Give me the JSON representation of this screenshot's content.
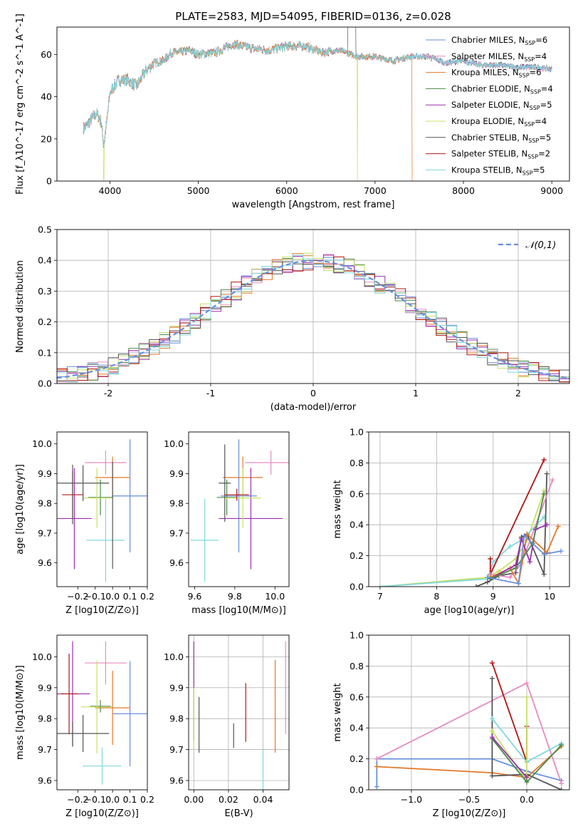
{
  "title": "PLATE=2583, MJD=54095, FIBERID=0136, z=0.028",
  "colors": {
    "blue": "#6a8fdc",
    "pink": "#e88bbf",
    "orange": "#e1792a",
    "green": "#4a8a4a",
    "purple": "#9b2fb2",
    "yellow": "#c8e064",
    "dark": "#555555",
    "red": "#b11414",
    "cyan": "#7fd8dd",
    "grid": "#b0b0b0"
  },
  "chart_data": [
    {
      "id": "spectrum",
      "type": "line",
      "xlabel": "wavelength [Angstrom, rest frame]",
      "ylabel": "Flux [f_λ10^-17 erg cm^-2 s^-1 A^-1]",
      "xlim": [
        3400,
        9200
      ],
      "ylim": [
        0,
        73
      ],
      "xticks": [
        4000,
        5000,
        6000,
        7000,
        8000,
        9000
      ],
      "yticks": [
        0,
        20,
        40,
        60
      ],
      "legend_position": "top-right",
      "envelope_x": [
        3700,
        3750,
        3800,
        3850,
        3900,
        3930,
        3970,
        4000,
        4100,
        4200,
        4300,
        4400,
        4500,
        4600,
        4700,
        4800,
        4900,
        5000,
        5200,
        5400,
        5600,
        5800,
        6000,
        6200,
        6400,
        6600,
        6800,
        7000,
        7200,
        7400,
        7600,
        7800,
        8000,
        8200,
        8400,
        8600,
        8800,
        9000
      ],
      "envelope_y": [
        25,
        27,
        30,
        32,
        28,
        17,
        30,
        42,
        48,
        48,
        45,
        52,
        56,
        57,
        61,
        61,
        62,
        60,
        61,
        65,
        63,
        62,
        64,
        64,
        61,
        62,
        59,
        59,
        57,
        59,
        59,
        56,
        57,
        55,
        55,
        54,
        54,
        53
      ],
      "series": [
        {
          "name": "Chabrier MILES",
          "nssp": "6",
          "color": "blue"
        },
        {
          "name": "Salpeter MILES",
          "nssp": "4",
          "color": "pink"
        },
        {
          "name": "Kroupa MILES",
          "nssp": "6",
          "color": "orange"
        },
        {
          "name": "Chabrier ELODIE",
          "nssp": "4",
          "color": "green"
        },
        {
          "name": "Salpeter ELODIE",
          "nssp": "5",
          "color": "purple"
        },
        {
          "name": "Kroupa ELODIE",
          "nssp": "4",
          "color": "yellow"
        },
        {
          "name": "Chabrier STELIB",
          "nssp": "5",
          "color": "dark"
        },
        {
          "name": "Salpeter STELIB",
          "nssp": "2",
          "color": "red"
        },
        {
          "name": "Kroupa STELIB",
          "nssp": "5",
          "color": "cyan"
        }
      ],
      "features": {
        "yellow_drop_x": [
          3930,
          6800
        ],
        "orange_drop_x": 7420,
        "dark_spike_x": [
          6690,
          6780
        ]
      }
    },
    {
      "id": "histogram",
      "type": "bar",
      "xlabel": "(data-model)/error",
      "ylabel": "Normed distribution",
      "xlim": [
        -2.5,
        2.5
      ],
      "ylim": [
        0,
        0.5
      ],
      "xticks": [
        -2,
        -1,
        0,
        1,
        2
      ],
      "yticks": [
        0.0,
        0.1,
        0.2,
        0.3,
        0.4,
        0.5
      ],
      "bin_width": 0.1,
      "bin_start": -2.5,
      "reference_label": "𝒩(0,1)",
      "legend_position": "top-right"
    },
    {
      "id": "age_vs_Z",
      "type": "scatter",
      "xlabel": "Z [log10(Z/Z⊙)]",
      "ylabel": "age [log10(age/yr)]",
      "xlim": [
        -0.32,
        0.2
      ],
      "ylim": [
        9.52,
        10.04
      ],
      "xticks": [
        -0.2,
        -0.1,
        0.0,
        0.1,
        0.2
      ],
      "yticks": [
        9.6,
        9.7,
        9.8,
        9.9,
        10.0
      ],
      "points": [
        {
          "color": "blue",
          "x": 0.1,
          "xerr": 0.1,
          "y": 9.825,
          "yerr": 0.19
        },
        {
          "color": "pink",
          "x": -0.04,
          "xerr": 0.12,
          "y": 9.937,
          "yerr": 0.04
        },
        {
          "color": "orange",
          "x": 0.0,
          "xerr": 0.1,
          "y": 9.887,
          "yerr": 0.07
        },
        {
          "color": "green",
          "x": -0.07,
          "xerr": 0.07,
          "y": 9.82,
          "yerr": 0.06
        },
        {
          "color": "purple",
          "x": -0.22,
          "xerr": 0.1,
          "y": 9.749,
          "yerr": 0.17
        },
        {
          "color": "yellow",
          "x": -0.09,
          "xerr": 0.08,
          "y": 9.818,
          "yerr": 0.1
        },
        {
          "color": "dark",
          "x": -0.17,
          "xerr": 0.15,
          "y": 9.868,
          "yerr": 0.06
        },
        {
          "color": "red",
          "x": -0.23,
          "xerr": 0.06,
          "y": 9.829,
          "yerr": 0.08
        },
        {
          "color": "cyan",
          "x": -0.04,
          "xerr": 0.11,
          "y": 9.676,
          "yerr": 0.14
        },
        {
          "color": "dark",
          "x": -0.23,
          "xerr": 0.0,
          "y": 9.83,
          "yerr": 0.1
        },
        {
          "color": "dark",
          "x": 0.0,
          "xerr": 0.0,
          "y": 9.76,
          "yerr": 0.18
        }
      ]
    },
    {
      "id": "age_vs_mass",
      "type": "scatter",
      "xlabel": "mass [log10(M/M⊙)]",
      "ylabel": "",
      "xlim": [
        9.57,
        10.07
      ],
      "ylim": [
        9.52,
        10.04
      ],
      "xticks": [
        9.6,
        9.8,
        10.0
      ],
      "yticks": [
        9.6,
        9.7,
        9.8,
        9.9,
        10.0
      ],
      "points": [
        {
          "color": "blue",
          "x": 9.82,
          "xerr": 0.09,
          "y": 9.825,
          "yerr": 0.19
        },
        {
          "color": "pink",
          "x": 9.98,
          "xerr": 0.13,
          "y": 9.937,
          "yerr": 0.04
        },
        {
          "color": "orange",
          "x": 9.84,
          "xerr": 0.1,
          "y": 9.887,
          "yerr": 0.07
        },
        {
          "color": "green",
          "x": 9.76,
          "xerr": 0.05,
          "y": 9.82,
          "yerr": 0.06
        },
        {
          "color": "purple",
          "x": 9.88,
          "xerr": 0.16,
          "y": 9.749,
          "yerr": 0.17
        },
        {
          "color": "yellow",
          "x": 9.84,
          "xerr": 0.09,
          "y": 9.818,
          "yerr": 0.1
        },
        {
          "color": "dark",
          "x": 9.75,
          "xerr": 0.03,
          "y": 9.868,
          "yerr": 0.13
        },
        {
          "color": "red",
          "x": 9.81,
          "xerr": 0.06,
          "y": 9.829,
          "yerr": 0.02
        },
        {
          "color": "cyan",
          "x": 9.65,
          "xerr": 0.07,
          "y": 9.676,
          "yerr": 0.14
        }
      ]
    },
    {
      "id": "mass_weight_vs_age",
      "type": "line",
      "xlabel": "age [log10(age/yr)]",
      "ylabel": "mass weight",
      "xlim": [
        6.8,
        10.35
      ],
      "ylim": [
        0.0,
        1.0
      ],
      "xticks": [
        7,
        8,
        9,
        10
      ],
      "yticks": [
        0.0,
        0.2,
        0.4,
        0.6,
        0.8,
        1.0
      ],
      "series": [
        {
          "color": "yellow",
          "x": [
            7.0,
            8.9,
            9.1,
            9.4,
            9.6,
            9.9
          ],
          "y": [
            0.0,
            0.06,
            0.1,
            0.18,
            0.3,
            0.62
          ]
        },
        {
          "color": "cyan",
          "x": [
            7.0,
            8.9,
            9.0,
            9.3,
            9.5,
            9.9
          ],
          "y": [
            0.0,
            0.05,
            0.16,
            0.26,
            0.3,
            0.45
          ]
        },
        {
          "color": "dark",
          "x": [
            8.7,
            8.9,
            9.1,
            9.4,
            9.5,
            9.6,
            9.9,
            9.95
          ],
          "y": [
            0.0,
            0.03,
            0.07,
            0.09,
            0.32,
            0.34,
            0.08,
            0.73
          ]
        },
        {
          "color": "red",
          "x": [
            8.95,
            8.95,
            9.9
          ],
          "y": [
            0.18,
            0.08,
            0.82
          ]
        },
        {
          "color": "pink",
          "x": [
            8.95,
            9.3,
            9.5,
            10.05
          ],
          "y": [
            0.08,
            0.06,
            0.15,
            0.69
          ]
        },
        {
          "color": "orange",
          "x": [
            8.95,
            9.3,
            9.45,
            9.6,
            9.95,
            10.15
          ],
          "y": [
            0.06,
            0.12,
            0.02,
            0.34,
            0.22,
            0.39
          ]
        },
        {
          "color": "purple",
          "x": [
            8.95,
            9.4,
            9.5,
            9.65,
            9.75,
            9.95
          ],
          "y": [
            0.05,
            0.14,
            0.31,
            0.16,
            0.37,
            0.4
          ]
        },
        {
          "color": "green",
          "x": [
            8.95,
            9.4,
            9.7,
            9.9
          ],
          "y": [
            0.05,
            0.12,
            0.28,
            0.6
          ]
        },
        {
          "color": "blue",
          "x": [
            8.9,
            9.45,
            9.55,
            9.9,
            10.2
          ],
          "y": [
            0.06,
            0.02,
            0.33,
            0.21,
            0.23
          ]
        }
      ]
    },
    {
      "id": "mass_vs_Z",
      "type": "scatter",
      "xlabel": "Z [log10(Z/Z⊙)]",
      "ylabel": "mass [log10(M/M⊙)]",
      "xlim": [
        -0.32,
        0.2
      ],
      "ylim": [
        9.57,
        10.07
      ],
      "xticks": [
        -0.2,
        -0.1,
        0.0,
        0.1,
        0.2
      ],
      "yticks": [
        9.6,
        9.7,
        9.8,
        9.9,
        10.0
      ],
      "points": [
        {
          "color": "blue",
          "x": 0.1,
          "xerr": 0.1,
          "y": 9.816,
          "yerr": 0.17
        },
        {
          "color": "pink",
          "x": -0.04,
          "xerr": 0.12,
          "y": 9.98,
          "yerr": 0.07
        },
        {
          "color": "orange",
          "x": 0.0,
          "xerr": 0.1,
          "y": 9.835,
          "yerr": 0.12
        },
        {
          "color": "green",
          "x": -0.07,
          "xerr": 0.06,
          "y": 9.84,
          "yerr": 0.02
        },
        {
          "color": "purple",
          "x": -0.23,
          "xerr": 0.1,
          "y": 9.88,
          "yerr": 0.17
        },
        {
          "color": "yellow",
          "x": -0.09,
          "xerr": 0.09,
          "y": 9.838,
          "yerr": 0.15
        },
        {
          "color": "dark",
          "x": -0.17,
          "xerr": 0.15,
          "y": 9.752,
          "yerr": 0.06
        },
        {
          "color": "red",
          "x": -0.25,
          "xerr": 0.05,
          "y": 9.88,
          "yerr": 0.13
        },
        {
          "color": "cyan",
          "x": -0.06,
          "xerr": 0.11,
          "y": 9.647,
          "yerr": 0.06
        },
        {
          "color": "dark",
          "x": -0.23,
          "xerr": 0.0,
          "y": 9.75,
          "yerr": 0.04
        }
      ]
    },
    {
      "id": "mass_vs_ebv",
      "type": "scatter",
      "xlabel": "E(B-V)",
      "ylabel": "",
      "xlim": [
        -0.003,
        0.055
      ],
      "ylim": [
        9.57,
        10.07
      ],
      "xticks": [
        0.0,
        0.02,
        0.04
      ],
      "yticks": [
        9.6,
        9.7,
        9.8,
        9.9,
        10.0
      ],
      "points": [
        {
          "color": "purple",
          "x": 0.0,
          "xerr": 0.0,
          "y": 9.89,
          "yerr": 0.16
        },
        {
          "color": "yellow",
          "x": 0.0,
          "xerr": 0.0,
          "y": 9.8,
          "yerr": 0.1
        },
        {
          "color": "dark",
          "x": 0.003,
          "xerr": 0.0,
          "y": 9.78,
          "yerr": 0.09
        },
        {
          "color": "dark",
          "x": 0.023,
          "xerr": 0.0,
          "y": 9.745,
          "yerr": 0.04
        },
        {
          "color": "red",
          "x": 0.03,
          "xerr": 0.0,
          "y": 9.82,
          "yerr": 0.095
        },
        {
          "color": "cyan",
          "x": 0.04,
          "xerr": 0.0,
          "y": 9.6,
          "yerr": 0.1
        },
        {
          "color": "orange",
          "x": 0.047,
          "xerr": 0.0,
          "y": 9.84,
          "yerr": 0.15
        },
        {
          "color": "pink",
          "x": 0.053,
          "xerr": 0.0,
          "y": 9.9,
          "yerr": 0.15
        }
      ]
    },
    {
      "id": "mass_weight_vs_Z",
      "type": "line",
      "xlabel": "Z [log10(Z/Z⊙)]",
      "ylabel": "mass weight",
      "xlim": [
        -1.37,
        0.37
      ],
      "ylim": [
        0.0,
        1.0
      ],
      "xticks": [
        -1.0,
        -0.5,
        0.0
      ],
      "yticks": [
        0.0,
        0.2,
        0.4,
        0.6,
        0.8,
        1.0
      ],
      "series": [
        {
          "color": "blue",
          "x": [
            -1.3,
            -1.3,
            -0.3,
            0.0,
            0.3
          ],
          "y": [
            0.02,
            0.2,
            0.2,
            0.12,
            0.06
          ]
        },
        {
          "color": "orange",
          "x": [
            -1.3,
            -0.3,
            0.0,
            0.3
          ],
          "y": [
            0.15,
            0.11,
            0.08,
            0.28
          ]
        },
        {
          "color": "pink",
          "x": [
            -1.3,
            0.0,
            0.3
          ],
          "y": [
            0.2,
            0.69,
            0.04
          ]
        },
        {
          "color": "red",
          "x": [
            -0.3,
            0.0,
            0.0
          ],
          "y": [
            0.82,
            0.18,
            0.41
          ]
        },
        {
          "color": "dark",
          "x": [
            -0.3,
            -0.3,
            0.0,
            0.3
          ],
          "y": [
            0.72,
            0.09,
            0.1,
            0.0
          ]
        },
        {
          "color": "cyan",
          "x": [
            -0.3,
            0.0,
            0.3
          ],
          "y": [
            0.46,
            0.18,
            0.3
          ]
        },
        {
          "color": "yellow",
          "x": [
            -0.3,
            0.0,
            0.0
          ],
          "y": [
            0.38,
            0.06,
            0.6
          ]
        },
        {
          "color": "green",
          "x": [
            -0.3,
            0.0,
            0.3
          ],
          "y": [
            0.33,
            0.05,
            0.29
          ]
        },
        {
          "color": "purple",
          "x": [
            -0.3,
            0.0
          ],
          "y": [
            0.34,
            0.08
          ]
        }
      ]
    }
  ]
}
